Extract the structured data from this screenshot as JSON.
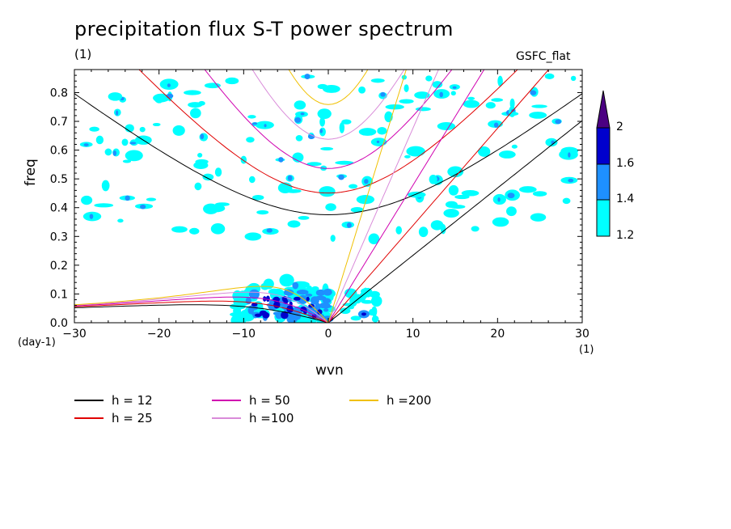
{
  "title": "precipitation flux S-T power spectrum",
  "subtitle_left": "(1)",
  "subtitle_right": "GSFC_flat",
  "chart_data": {
    "type": "heatmap",
    "xlabel": "wvn",
    "ylabel": "freq",
    "x_unit": "(1)",
    "y_unit": "(day-1)",
    "xlim": [
      -30,
      30
    ],
    "ylim": [
      0,
      0.88
    ],
    "xticks": [
      -30,
      -20,
      -10,
      0,
      10,
      20,
      30
    ],
    "yticks": [
      0.0,
      0.1,
      0.2,
      0.3,
      0.4,
      0.5,
      0.6,
      0.7,
      0.8
    ],
    "xtick_labels": [
      "−30",
      "−20",
      "−10",
      "0",
      "10",
      "20",
      "30"
    ],
    "ytick_labels": [
      "0.0",
      "0.1",
      "0.2",
      "0.3",
      "0.4",
      "0.5",
      "0.6",
      "0.7",
      "0.8"
    ],
    "colorbar": {
      "levels": [
        1.2,
        1.4,
        1.6,
        2
      ],
      "labels": [
        "1.2",
        "1.4",
        "1.6",
        "2"
      ],
      "colors": [
        "#00ffff",
        "#1e90ff",
        "#0000cd",
        "#4b0082"
      ]
    },
    "dispersion_curves": [
      {
        "name": "h = 12",
        "h": 12,
        "color": "#000000"
      },
      {
        "name": "h = 25",
        "h": 25,
        "color": "#e00000"
      },
      {
        "name": "h = 50",
        "h": 50,
        "color": "#d000b0"
      },
      {
        "name": "h =100",
        "h": 100,
        "color": "#d98bd9"
      },
      {
        "name": "h =200",
        "h": 200,
        "color": "#f0c000"
      }
    ]
  }
}
